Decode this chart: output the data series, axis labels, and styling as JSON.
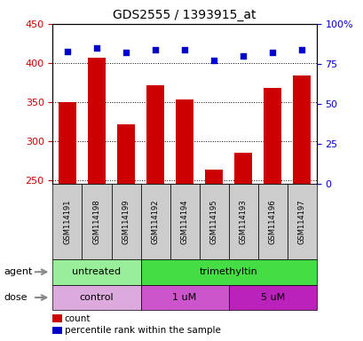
{
  "title": "GDS2555 / 1393915_at",
  "samples": [
    "GSM114191",
    "GSM114198",
    "GSM114199",
    "GSM114192",
    "GSM114194",
    "GSM114195",
    "GSM114193",
    "GSM114196",
    "GSM114197"
  ],
  "bar_values": [
    350,
    407,
    322,
    371,
    353,
    264,
    285,
    368,
    384
  ],
  "dot_values": [
    83,
    85,
    82,
    84,
    84,
    77,
    80,
    82,
    84
  ],
  "ylim_left": [
    245,
    450
  ],
  "ylim_right": [
    0,
    100
  ],
  "yticks_left": [
    250,
    300,
    350,
    400,
    450
  ],
  "yticks_right": [
    0,
    25,
    50,
    75,
    100
  ],
  "bar_color": "#cc0000",
  "dot_color": "#0000cc",
  "bar_width": 0.6,
  "bar_baseline": 245,
  "agent_groups": [
    {
      "label": "untreated",
      "start": 0,
      "end": 3,
      "color": "#99ee99"
    },
    {
      "label": "trimethyltin",
      "start": 3,
      "end": 9,
      "color": "#44dd44"
    }
  ],
  "dose_groups": [
    {
      "label": "control",
      "start": 0,
      "end": 3,
      "color": "#ddaadd"
    },
    {
      "label": "1 uM",
      "start": 3,
      "end": 6,
      "color": "#cc55cc"
    },
    {
      "label": "5 uM",
      "start": 6,
      "end": 9,
      "color": "#bb22bb"
    }
  ],
  "legend_items": [
    {
      "label": "count",
      "color": "#cc0000"
    },
    {
      "label": "percentile rank within the sample",
      "color": "#0000cc"
    }
  ],
  "sample_box_color": "#cccccc",
  "background_color": "#ffffff",
  "tick_label_color_left": "#cc0000",
  "tick_label_color_right": "#0000cc"
}
